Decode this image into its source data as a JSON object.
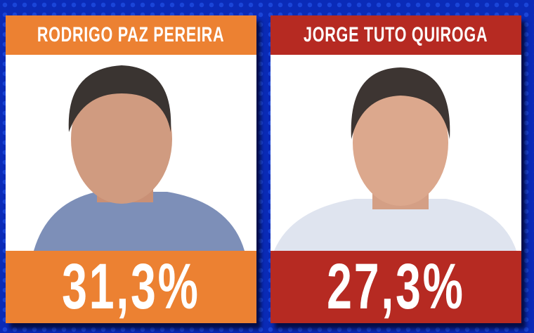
{
  "colors": {
    "background": "#0a2bb8",
    "candidate_1": "#ec8132",
    "candidate_2": "#b62a22"
  },
  "candidates": [
    {
      "name": "RODRIGO PAZ PEREIRA",
      "percentage": "31,3%",
      "color": "#ec8132"
    },
    {
      "name": "JORGE TUTO QUIROGA",
      "percentage": "27,3%",
      "color": "#b62a22"
    }
  ]
}
